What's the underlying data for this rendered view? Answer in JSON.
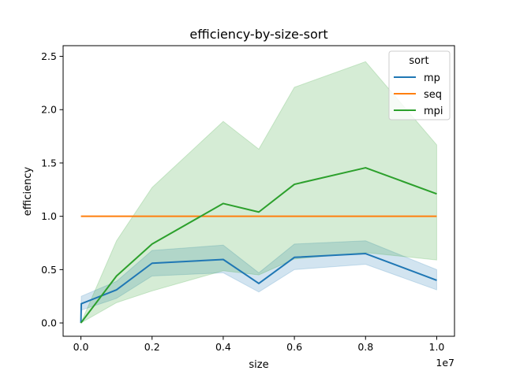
{
  "chart_data": {
    "type": "line",
    "title": "efficiency-by-size-sort",
    "xlabel": "size",
    "ylabel": "efficiency",
    "x_offset_label": "1e7",
    "xlim": [
      -0.05,
      1.05
    ],
    "ylim": [
      -0.125,
      2.6
    ],
    "x_ticks": [
      0.0,
      0.2,
      0.4,
      0.6,
      0.8,
      1.0
    ],
    "x_tick_labels": [
      "0.0",
      "0.2",
      "0.4",
      "0.6",
      "0.8",
      "1.0"
    ],
    "y_ticks": [
      0.0,
      0.5,
      1.0,
      1.5,
      2.0,
      2.5
    ],
    "y_tick_labels": [
      "0.0",
      "0.5",
      "1.0",
      "1.5",
      "2.0",
      "2.5"
    ],
    "grid": false,
    "legend": {
      "title": "sort",
      "placement": "top-right"
    },
    "series": [
      {
        "name": "mp",
        "color": "#1f77b4",
        "x": [
          0,
          0.001,
          0.1,
          0.2,
          0.4,
          0.5,
          0.6,
          0.8,
          1.0
        ],
        "y": [
          0.0,
          0.18,
          0.31,
          0.56,
          0.595,
          0.37,
          0.615,
          0.65,
          0.4
        ],
        "band_low": [
          0.0,
          0.12,
          0.23,
          0.44,
          0.47,
          0.29,
          0.5,
          0.55,
          0.31
        ],
        "band_high": [
          0.0,
          0.25,
          0.39,
          0.68,
          0.73,
          0.47,
          0.74,
          0.77,
          0.5
        ]
      },
      {
        "name": "seq",
        "color": "#ff7f0e",
        "x": [
          0,
          0.001,
          0.1,
          0.2,
          0.4,
          0.5,
          0.6,
          0.8,
          1.0
        ],
        "y": [
          1.0,
          1.0,
          1.0,
          1.0,
          1.0,
          1.0,
          1.0,
          1.0,
          1.0
        ]
      },
      {
        "name": "mpi",
        "color": "#2ca02c",
        "x": [
          0,
          0.1,
          0.2,
          0.4,
          0.5,
          0.6,
          0.8,
          1.0
        ],
        "y": [
          0.0,
          0.44,
          0.74,
          1.12,
          1.04,
          1.3,
          1.455,
          1.21
        ],
        "band_low": [
          0.0,
          0.19,
          0.3,
          0.49,
          0.45,
          0.6,
          0.66,
          0.59
        ],
        "band_high": [
          0.0,
          0.77,
          1.27,
          1.89,
          1.63,
          2.21,
          2.45,
          1.67
        ]
      }
    ]
  }
}
